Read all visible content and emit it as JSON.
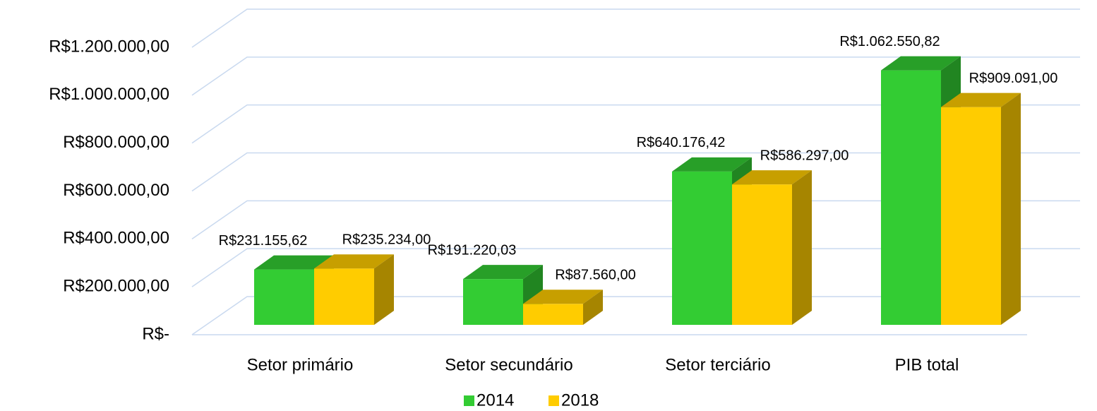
{
  "chart_data": {
    "type": "bar3d",
    "categories": [
      "Setor primário",
      "Setor secundário",
      "Setor terciário",
      "PIB total"
    ],
    "series": [
      {
        "name": "2014",
        "color": "#33cc33",
        "values": [
          231155.62,
          191220.03,
          640176.42,
          1062550.82
        ],
        "value_labels": [
          "R$231.155,62",
          "R$191.220,03",
          "R$640.176,42",
          "R$1.062.550,82"
        ]
      },
      {
        "name": "2018",
        "color": "#ffcc00",
        "values": [
          235234,
          87560,
          586297,
          909091
        ],
        "value_labels": [
          "R$235.234,00",
          "R$87.560,00",
          "R$586.297,00",
          "R$909.091,00"
        ]
      }
    ],
    "ylim": [
      0,
      1200000
    ],
    "yticks": [
      {
        "value": 0,
        "label": "R$-"
      },
      {
        "value": 200000,
        "label": "R$200.000,00"
      },
      {
        "value": 400000,
        "label": "R$400.000,00"
      },
      {
        "value": 600000,
        "label": "R$600.000,00"
      },
      {
        "value": 800000,
        "label": "R$800.000,00"
      },
      {
        "value": 1000000,
        "label": "R$1.000.000,00"
      },
      {
        "value": 1200000,
        "label": "R$1.200.000,00"
      }
    ],
    "grid": true,
    "legend": "bottom"
  }
}
